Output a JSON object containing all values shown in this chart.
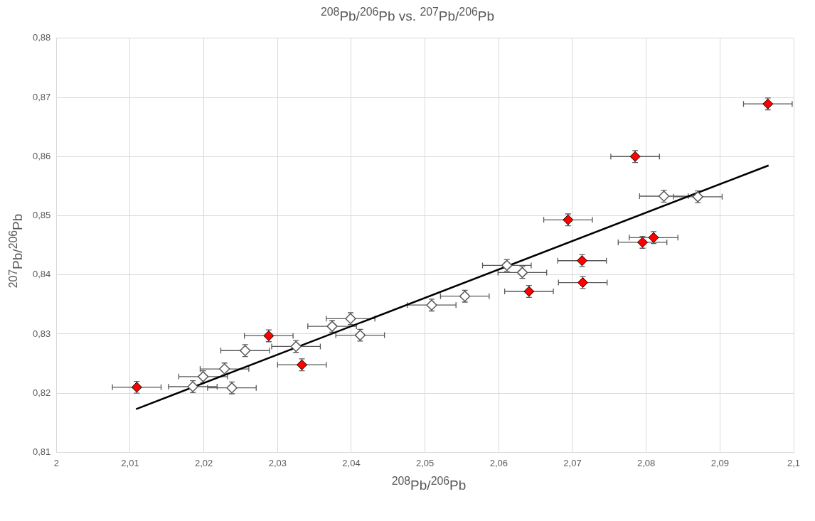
{
  "chart_data": {
    "type": "scatter",
    "title": "$^{208}$Pb/$^{206}$Pb vs. $^{207}$Pb/$^{206}$Pb",
    "xlabel": "$^{208}$Pb/$^{206}$Pb",
    "ylabel": "$^{207}$Pb/$^{206}$Pb",
    "xlim": [
      2,
      2.1
    ],
    "xticks": [
      2,
      {
        "value": 2.01,
        "label": "2,01"
      },
      {
        "value": 2.02,
        "label": "2,02"
      },
      {
        "value": 2.03,
        "label": "2,03"
      },
      {
        "value": 2.04,
        "label": "2,04"
      },
      {
        "value": 2.05,
        "label": "2,05"
      },
      {
        "value": 2.06,
        "label": "2,06"
      },
      {
        "value": 2.07,
        "label": "2,07"
      },
      {
        "value": 2.08,
        "label": "2,08"
      },
      {
        "value": 2.09,
        "label": "2,09"
      },
      {
        "value": 2.1,
        "label": "2,1"
      }
    ],
    "ylim": [
      0.81,
      0.88
    ],
    "yticks": [
      {
        "value": 0.81,
        "label": "0,81"
      },
      {
        "value": 0.82,
        "label": "0,82"
      },
      {
        "value": 0.83,
        "label": "0,83"
      },
      {
        "value": 0.84,
        "label": "0,84"
      },
      {
        "value": 0.85,
        "label": "0,85"
      },
      {
        "value": 0.86,
        "label": "0,86"
      },
      {
        "value": 0.87,
        "label": "0,87"
      },
      {
        "value": 0.88,
        "label": "0,88"
      }
    ],
    "grid": true,
    "legend": false,
    "marker": "diamond",
    "series": [
      {
        "type": "scatter",
        "color": "#ff0000",
        "x": [
          2.0109,
          2.0288,
          2.0333,
          2.0641,
          2.0694,
          2.0713,
          2.0714,
          2.0785,
          2.0795,
          2.081,
          2.0965
        ],
        "values": [
          0.821,
          0.8297,
          0.8248,
          0.8372,
          0.8493,
          0.8424,
          0.8387,
          0.86,
          0.8455,
          0.8463,
          0.8689
        ],
        "xerrors": [
          0.0033,
          0.0033,
          0.0033,
          0.0033,
          0.0033,
          0.0033,
          0.0033,
          0.0033,
          0.0033,
          0.0033,
          0.0033
        ],
        "errors": [
          0.001,
          0.001,
          0.001,
          0.001,
          0.001,
          0.001,
          0.001,
          0.001,
          0.001,
          0.001,
          0.001
        ]
      },
      {
        "type": "scatter",
        "color": "#595959",
        "x": [
          2.0185,
          2.0199,
          2.0228,
          2.0238,
          2.0256,
          2.0325,
          2.0374,
          2.0399,
          2.0412,
          2.0509,
          2.0554,
          2.0611,
          2.0632,
          2.0824,
          2.087
        ],
        "values": [
          0.8211,
          0.8228,
          0.8241,
          0.8209,
          0.8272,
          0.8279,
          0.8313,
          0.8326,
          0.8298,
          0.8349,
          0.8364,
          0.8416,
          0.8404,
          0.8533,
          0.8532
        ],
        "xerrors": [
          0.0033,
          0.0033,
          0.0033,
          0.0033,
          0.0033,
          0.0033,
          0.0033,
          0.0033,
          0.0033,
          0.0033,
          0.0033,
          0.0033,
          0.0033,
          0.0033,
          0.0033
        ],
        "errors": [
          0.001,
          0.001,
          0.001,
          0.001,
          0.001,
          0.001,
          0.001,
          0.001,
          0.001,
          0.001,
          0.001,
          0.001,
          0.001,
          0.001,
          0.001
        ]
      },
      {
        "type": "line",
        "color": "#000000",
        "marker": "none",
        "x": [
          2.0108,
          2.0966
        ],
        "values": [
          0.8173,
          0.8585
        ]
      }
    ]
  }
}
